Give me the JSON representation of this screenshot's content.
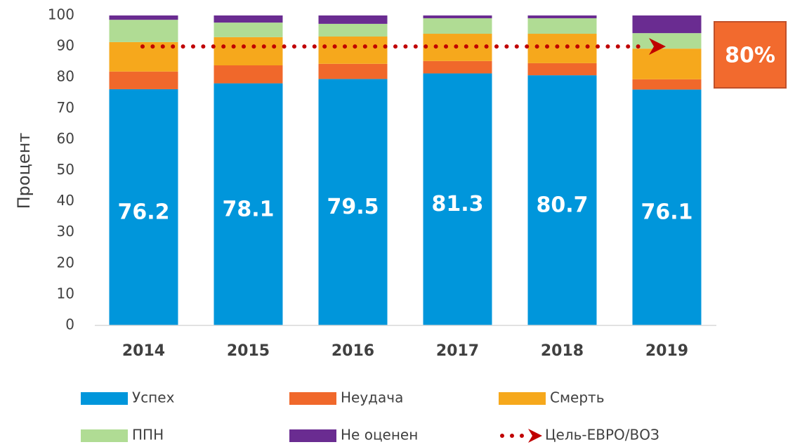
{
  "chart_data": {
    "type": "bar",
    "stacked": true,
    "y_label": "Процент",
    "categories": [
      "2014",
      "2015",
      "2016",
      "2017",
      "2018",
      "2019"
    ],
    "series": [
      {
        "name": "Успех",
        "color": "#0096db",
        "values": [
          76.2,
          78.1,
          79.5,
          81.3,
          80.7,
          76.1
        ]
      },
      {
        "name": "Неудача",
        "color": "#f0682b",
        "values": [
          5.7,
          5.8,
          4.9,
          4.0,
          3.9,
          3.3
        ]
      },
      {
        "name": "Смерть",
        "color": "#f6a81c",
        "values": [
          9.5,
          9.1,
          8.8,
          8.8,
          9.5,
          9.9
        ]
      },
      {
        "name": "ППН",
        "color": "#b0dc94",
        "values": [
          7.2,
          4.7,
          4.1,
          5.0,
          5.0,
          5.0
        ]
      },
      {
        "name": "Не оценен",
        "color": "#6a2c91",
        "values": [
          1.4,
          2.3,
          2.7,
          0.9,
          0.9,
          5.7
        ]
      }
    ],
    "target": {
      "name": "Цель-ЕВРО/ВОЗ",
      "value": 90,
      "color": "#c00000"
    },
    "annotation": "80%",
    "ylim": [
      0,
      100
    ],
    "yticks": [
      0,
      10,
      20,
      30,
      40,
      50,
      60,
      70,
      80,
      90,
      100
    ],
    "grid": false
  }
}
